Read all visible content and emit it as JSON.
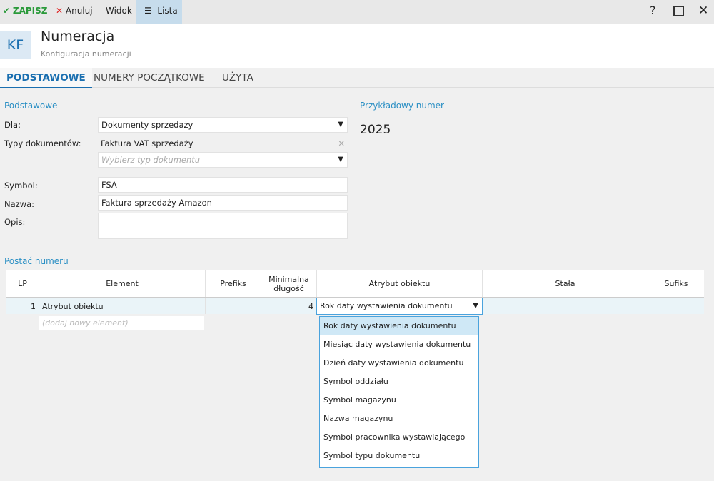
{
  "toolbar": {
    "save": "ZAPISZ",
    "cancel": "Anuluj",
    "view": "Widok",
    "list": "Lista",
    "help": "?"
  },
  "header": {
    "badge": "KF",
    "title": "Numeracja",
    "subtitle": "Konfiguracja numeracji"
  },
  "tabs": [
    "PODSTAWOWE",
    "NUMERY POCZĄTKOWE",
    "UŻYTA"
  ],
  "basic": {
    "section": "Podstawowe",
    "for_label": "Dla:",
    "for_value": "Dokumenty sprzedaży",
    "types_label": "Typy dokumentów:",
    "types_value": "Faktura VAT sprzedaży",
    "types_placeholder": "Wybierz typ dokumentu",
    "symbol_label": "Symbol:",
    "symbol_value": "FSA",
    "name_label": "Nazwa:",
    "name_value": "Faktura sprzedaży Amazon",
    "desc_label": "Opis:",
    "desc_value": ""
  },
  "example": {
    "label": "Przykładowy numer",
    "value": "2025"
  },
  "format": {
    "section": "Postać numeru",
    "columns": [
      "LP",
      "Element",
      "Prefiks",
      "Minimalna długość",
      "Atrybut obiektu",
      "Stała",
      "Sufiks"
    ],
    "rows": [
      {
        "lp": "1",
        "element": "Atrybut obiektu",
        "prefix": "",
        "min_len": "4",
        "attribute": "Rok daty wystawienia dokumentu",
        "const": "",
        "suffix": ""
      }
    ],
    "add_placeholder": "(dodaj nowy element)",
    "options": [
      "Rok daty wystawienia dokumentu",
      "Miesiąc daty wystawienia dokumentu",
      "Dzień daty wystawienia dokumentu",
      "Symbol oddziału",
      "Symbol magazynu",
      "Nazwa magazynu",
      "Symbol pracownika wystawiającego",
      "Symbol typu dokumentu"
    ]
  }
}
